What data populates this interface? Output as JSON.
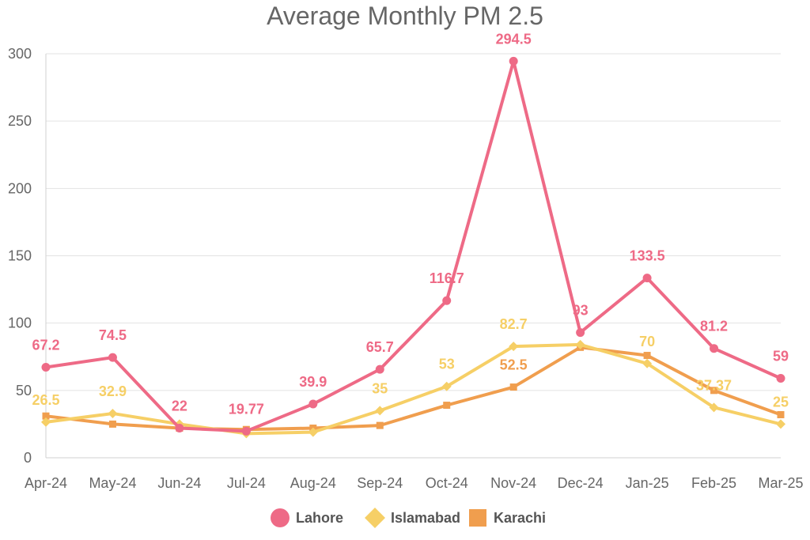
{
  "chart_data": {
    "type": "line",
    "title": "Average Monthly PM 2.5",
    "xlabel": "",
    "ylabel": "",
    "categories": [
      "Apr-24",
      "May-24",
      "Jun-24",
      "Jul-24",
      "Aug-24",
      "Sep-24",
      "Oct-24",
      "Nov-24",
      "Dec-24",
      "Jan-25",
      "Feb-25",
      "Mar-25"
    ],
    "ylim": [
      0,
      300
    ],
    "yticks": [
      0,
      50,
      100,
      150,
      200,
      250,
      300
    ],
    "grid": true,
    "legend_position": "bottom",
    "series": [
      {
        "name": "Lahore",
        "color": "#ee6a86",
        "marker": "circle",
        "values": [
          67.2,
          74.5,
          22,
          19.77,
          39.9,
          65.7,
          116.7,
          294.5,
          93,
          133.5,
          81.2,
          59
        ],
        "labels": [
          "67.2",
          "74.5",
          "22",
          "19.77",
          "39.9",
          "65.7",
          "116.7",
          "294.5",
          "93",
          "133.5",
          "81.2",
          "59"
        ]
      },
      {
        "name": "Islamabad",
        "color": "#f6cf66",
        "marker": "diamond",
        "values": [
          26.5,
          32.9,
          25,
          18,
          19,
          35,
          53,
          82.7,
          84,
          70,
          37.37,
          25
        ],
        "labels": [
          "26.5",
          "32.9",
          "",
          "",
          "",
          "35",
          "53",
          "82.7",
          "",
          "70",
          "37.37",
          "25"
        ]
      },
      {
        "name": "Karachi",
        "color": "#f09e4e",
        "marker": "square",
        "values": [
          31,
          25,
          22,
          21,
          22,
          24,
          39,
          52.5,
          82,
          76,
          50,
          32
        ],
        "labels": [
          "",
          "",
          "",
          "",
          "",
          "",
          "",
          "52.5",
          "",
          "",
          "",
          ""
        ]
      }
    ]
  }
}
